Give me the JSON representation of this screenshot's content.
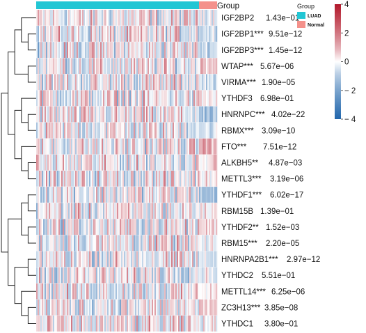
{
  "chart_data": {
    "type": "heatmap",
    "column_annotation": {
      "title": "Group",
      "groups": [
        {
          "name": "LUAD",
          "color": "#22c6d4",
          "fraction": 0.9
        },
        {
          "name": "Normal",
          "color": "#f4918b",
          "fraction": 0.1
        }
      ]
    },
    "rows": [
      {
        "gene": "IGF2BP2",
        "sig": "",
        "p": "1.43e−01"
      },
      {
        "gene": "IGF2BP1",
        "sig": "***",
        "p": "9.51e−12"
      },
      {
        "gene": "IGF2BP3",
        "sig": "***",
        "p": "1.45e−12"
      },
      {
        "gene": "WTAP",
        "sig": "***",
        "p": "5.67e−06"
      },
      {
        "gene": "VIRMA",
        "sig": "***",
        "p": "1.90e−05"
      },
      {
        "gene": "YTHDF3",
        "sig": "",
        "p": "6.98e−01"
      },
      {
        "gene": "HNRNPC",
        "sig": "***",
        "p": "4.02e−22"
      },
      {
        "gene": "RBMX",
        "sig": "***",
        "p": "3.09e−10"
      },
      {
        "gene": "FTO",
        "sig": "***",
        "p": "7.51e−12"
      },
      {
        "gene": "ALKBH5",
        "sig": "**",
        "p": "4.87e−03"
      },
      {
        "gene": "METTL3",
        "sig": "***",
        "p": "3.19e−06"
      },
      {
        "gene": "YTHDF1",
        "sig": "***",
        "p": "6.02e−17"
      },
      {
        "gene": "RBM15B",
        "sig": "",
        "p": "1.39e−01"
      },
      {
        "gene": "YTHDF2",
        "sig": "**",
        "p": "1.52e−03"
      },
      {
        "gene": "RBM15",
        "sig": "***",
        "p": "2.20e−05"
      },
      {
        "gene": "HNRNPA2B1",
        "sig": "***",
        "p": "2.97e−12"
      },
      {
        "gene": "YTHDC2",
        "sig": "",
        "p": "5.51e−01"
      },
      {
        "gene": "METTL14",
        "sig": "***",
        "p": "6.25e−06"
      },
      {
        "gene": "ZC3H13",
        "sig": "***",
        "p": "3.85e−08"
      },
      {
        "gene": "YTHDC1",
        "sig": "",
        "p": "3.80e−01"
      }
    ],
    "normal_bias": [
      0.0,
      -0.3,
      -0.35,
      0.5,
      -0.3,
      0.1,
      -0.9,
      -0.3,
      0.7,
      0.3,
      0.2,
      -0.8,
      0.1,
      0.3,
      -0.2,
      -0.3,
      0.0,
      0.2,
      0.35,
      0.0
    ],
    "color_scale": {
      "min": -4,
      "max": 4,
      "ticks": [
        4,
        2,
        0,
        -2,
        -4
      ],
      "tick_labels": [
        "4",
        "2",
        "0",
        "− 2",
        "− 4"
      ],
      "colors": {
        "low": "#2166ac",
        "mid": "#ffffff",
        "high": "#b2182b"
      }
    },
    "legend": {
      "title": "Group",
      "placement": "top-right"
    }
  }
}
